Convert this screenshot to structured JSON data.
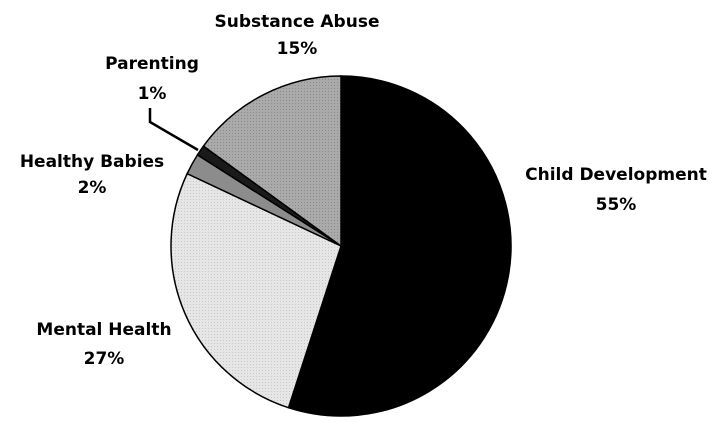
{
  "chart_data": {
    "type": "pie",
    "title": "",
    "slices": [
      {
        "label": "Child Development",
        "value": 55,
        "value_label": "55%",
        "color": "#000000"
      },
      {
        "label": "Mental Health",
        "value": 27,
        "value_label": "27%",
        "color": "#e2e2e2"
      },
      {
        "label": "Healthy Babies",
        "value": 2,
        "value_label": "2%",
        "color": "#8c8c8c"
      },
      {
        "label": "Parenting",
        "value": 1,
        "value_label": "1%",
        "color": "#1a1a1a"
      },
      {
        "label": "Substance Abuse",
        "value": 15,
        "value_label": "15%",
        "color": "#a6a6a6"
      }
    ],
    "start_angle_deg": 0,
    "direction": "clockwise",
    "legend": "none",
    "labels_outside": true
  }
}
